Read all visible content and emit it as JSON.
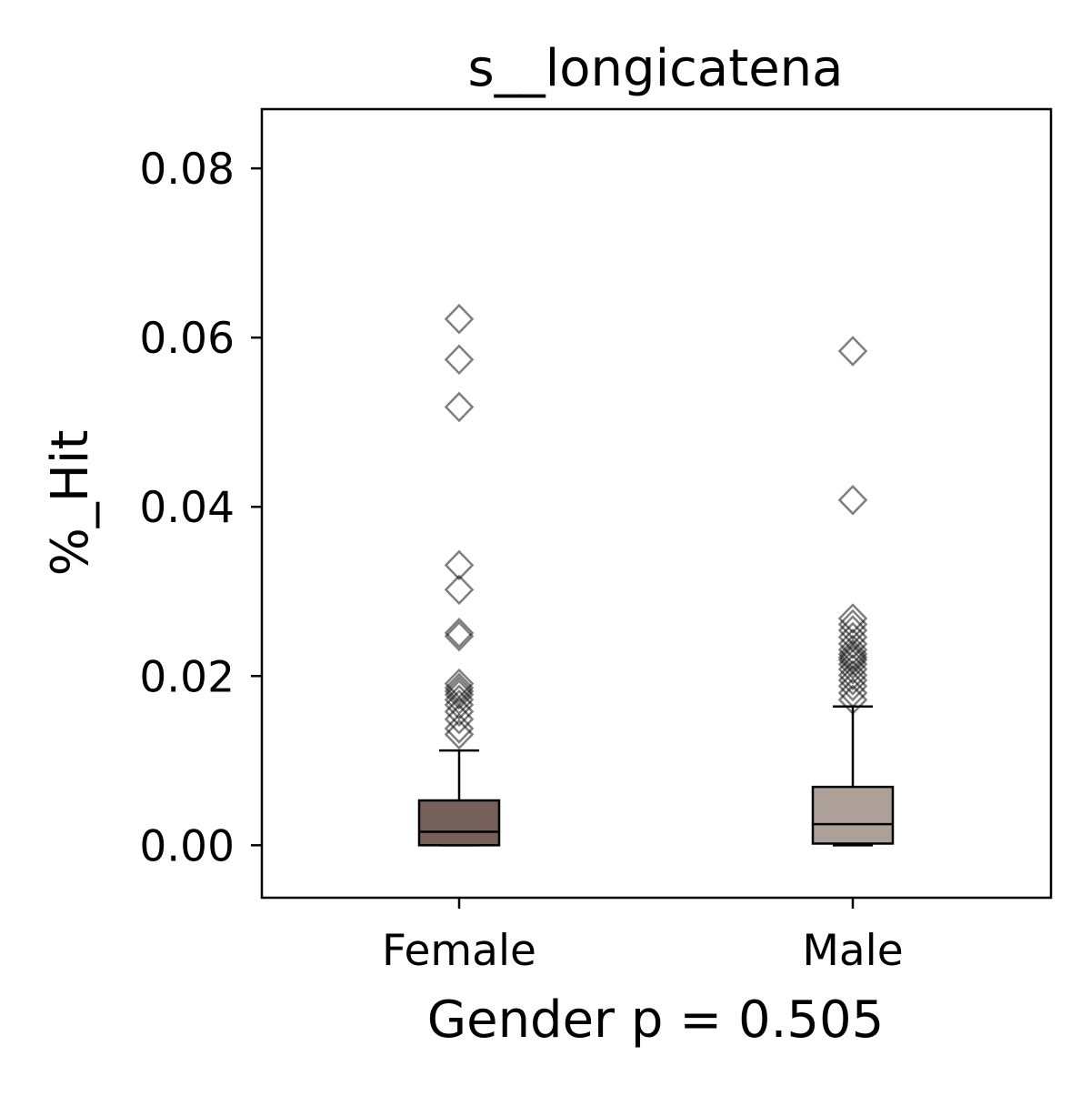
{
  "chart_data": {
    "type": "boxplot",
    "title": "s__longicatena",
    "xlabel": "Gender p = 0.505",
    "ylabel": "%_Hit",
    "ylim": [
      -0.0062,
      0.087
    ],
    "yticks": [
      0.0,
      0.02,
      0.04,
      0.06,
      0.08
    ],
    "ytick_labels": [
      "0.00",
      "0.02",
      "0.04",
      "0.06",
      "0.08"
    ],
    "grid": false,
    "categories": [
      "Female",
      "Male"
    ],
    "boxes": [
      {
        "name": "Female",
        "color": "#75605c",
        "whisker_low": 0.0,
        "q1": 0.0,
        "median": 0.0016,
        "q3": 0.0053,
        "whisker_high": 0.0112,
        "outliers": [
          0.0622,
          0.0574,
          0.0518,
          0.0331,
          0.0302,
          0.0251,
          0.0247,
          0.0191,
          0.0186,
          0.0182,
          0.0178,
          0.0172,
          0.0166,
          0.0158,
          0.0149,
          0.0138,
          0.0131
        ]
      },
      {
        "name": "Male",
        "color": "#ada098",
        "whisker_low": 0.0,
        "q1": 0.0002,
        "median": 0.0025,
        "q3": 0.0069,
        "whisker_high": 0.0164,
        "outliers": [
          0.0584,
          0.0408,
          0.0268,
          0.0261,
          0.0254,
          0.0246,
          0.0238,
          0.0231,
          0.0226,
          0.0222,
          0.0219,
          0.0214,
          0.0208,
          0.0201,
          0.0195,
          0.0188,
          0.018,
          0.0172
        ]
      }
    ]
  }
}
